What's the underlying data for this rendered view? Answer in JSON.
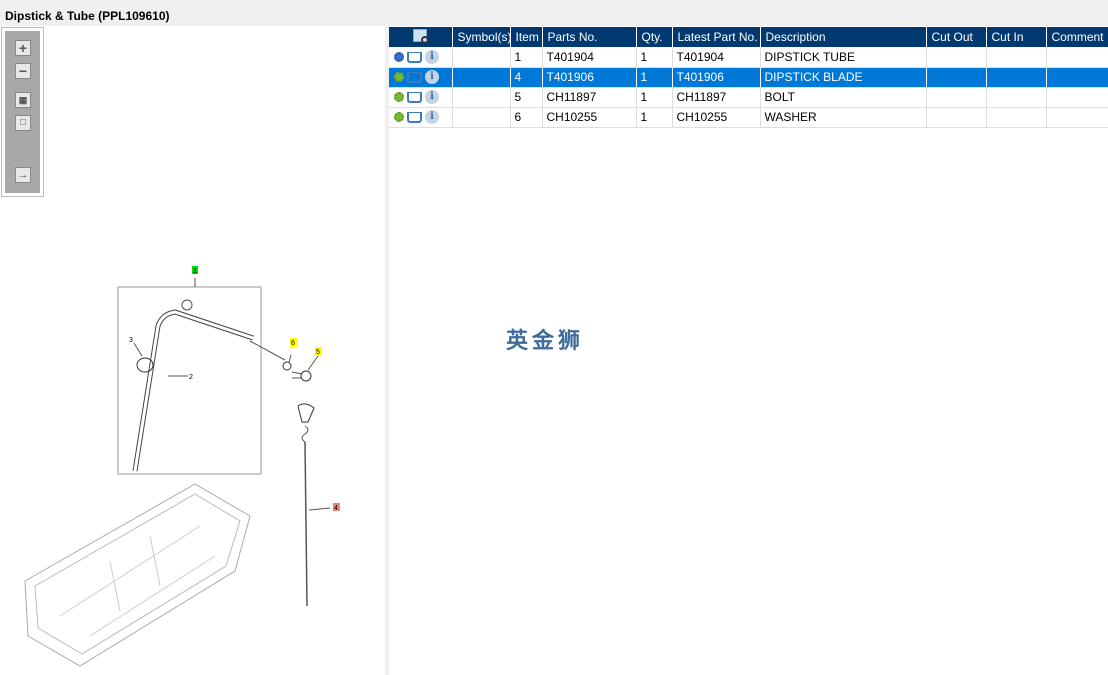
{
  "title": "Dipstick & Tube (PPL109610)",
  "toolbar": {
    "icons": [
      "zoom-in-icon",
      "zoom-out-icon",
      "fit-all-icon",
      "actual-size-icon",
      "toggle-panel-icon"
    ]
  },
  "diagram": {
    "callouts": [
      {
        "label": "1",
        "color": "#00e000"
      },
      {
        "label": "2",
        "color": ""
      },
      {
        "label": "3",
        "color": ""
      },
      {
        "label": "4",
        "color": "#f08080"
      },
      {
        "label": "5",
        "color": "#ffff00"
      },
      {
        "label": "6",
        "color": "#ffff00"
      }
    ]
  },
  "table": {
    "columns": [
      "",
      "Symbol(s)",
      "Item",
      "Parts No.",
      "Qty.",
      "Latest Part No.",
      "Description",
      "Cut Out",
      "Cut In",
      "Comment"
    ],
    "rows": [
      {
        "symbols": "",
        "item": "1",
        "part": "T401904",
        "qty": "1",
        "latest": "T401904",
        "desc": "DIPSTICK TUBE",
        "cut_out": "",
        "cut_in": "",
        "comment": "",
        "selected": false,
        "assembly": true
      },
      {
        "symbols": "",
        "item": "4",
        "part": "T401906",
        "qty": "1",
        "latest": "T401906",
        "desc": "DIPSTICK BLADE",
        "cut_out": "",
        "cut_in": "",
        "comment": "",
        "selected": true,
        "assembly": false
      },
      {
        "symbols": "",
        "item": "5",
        "part": "CH11897",
        "qty": "1",
        "latest": "CH11897",
        "desc": "BOLT",
        "cut_out": "",
        "cut_in": "",
        "comment": "",
        "selected": false,
        "assembly": false
      },
      {
        "symbols": "",
        "item": "6",
        "part": "CH10255",
        "qty": "1",
        "latest": "CH10255",
        "desc": "WASHER",
        "cut_out": "",
        "cut_in": "",
        "comment": "",
        "selected": false,
        "assembly": false
      }
    ]
  },
  "watermark": "英金狮",
  "colors": {
    "header": "#003a70",
    "selected": "#0078d7"
  }
}
